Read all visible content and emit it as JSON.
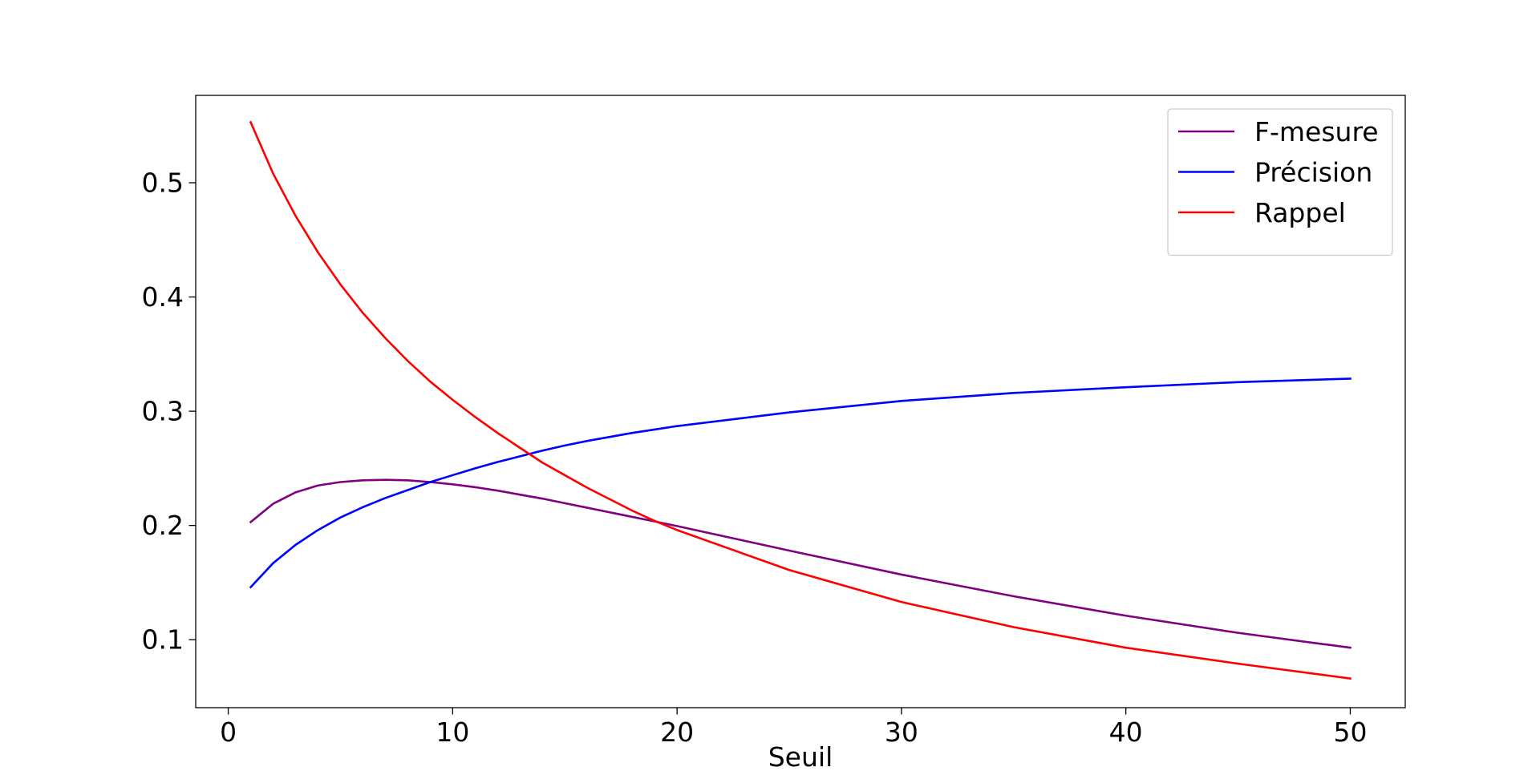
{
  "chart_data": {
    "type": "line",
    "title": "",
    "xlabel": "Seuil",
    "ylabel": "",
    "xlim": [
      -1.45,
      52.45
    ],
    "ylim": [
      0.0405,
      0.5765
    ],
    "xticks": [
      0,
      10,
      20,
      30,
      40,
      50
    ],
    "xtick_labels": [
      "0",
      "10",
      "20",
      "30",
      "40",
      "50"
    ],
    "yticks": [
      0.1,
      0.2,
      0.3,
      0.4,
      0.5
    ],
    "ytick_labels": [
      "0.1",
      "0.2",
      "0.3",
      "0.4",
      "0.5"
    ],
    "grid": false,
    "legend_position": "top-right",
    "x": [
      1,
      2,
      3,
      4,
      5,
      6,
      7,
      8,
      9,
      10,
      11,
      12,
      13,
      14,
      15,
      16,
      17,
      18,
      19,
      20,
      25,
      30,
      35,
      40,
      45,
      50
    ],
    "series": [
      {
        "name": "F-mesure",
        "color": "#800080",
        "values": [
          0.203,
          0.219,
          0.229,
          0.235,
          0.238,
          0.2395,
          0.24,
          0.2395,
          0.238,
          0.236,
          0.2335,
          0.2305,
          0.227,
          0.2235,
          0.2195,
          0.2155,
          0.2115,
          0.2075,
          0.2035,
          0.1995,
          0.178,
          0.157,
          0.138,
          0.121,
          0.106,
          0.093
        ]
      },
      {
        "name": "Précision",
        "color": "#0000ff",
        "values": [
          0.146,
          0.167,
          0.183,
          0.196,
          0.207,
          0.216,
          0.224,
          0.231,
          0.238,
          0.244,
          0.25,
          0.2555,
          0.2605,
          0.2655,
          0.27,
          0.274,
          0.2775,
          0.281,
          0.284,
          0.287,
          0.299,
          0.309,
          0.316,
          0.321,
          0.3255,
          0.3285
        ]
      },
      {
        "name": "Rappel",
        "color": "#ff0000",
        "values": [
          0.553,
          0.508,
          0.471,
          0.439,
          0.411,
          0.386,
          0.364,
          0.344,
          0.326,
          0.31,
          0.295,
          0.281,
          0.268,
          0.255,
          0.244,
          0.233,
          0.223,
          0.213,
          0.204,
          0.196,
          0.161,
          0.133,
          0.111,
          0.093,
          0.079,
          0.066
        ]
      }
    ]
  }
}
